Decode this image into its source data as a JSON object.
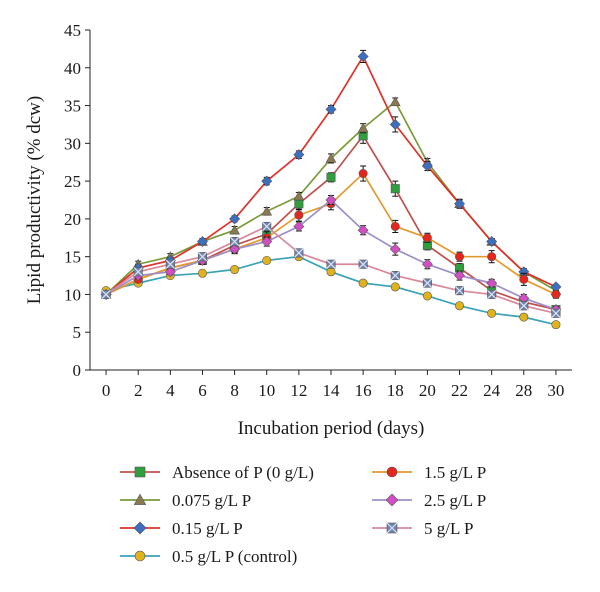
{
  "chart_data": {
    "type": "line",
    "xlabel": "Incubation period (days)",
    "ylabel": "Lipid productivity (% dcw)",
    "ylim": [
      0,
      45
    ],
    "yticks": [
      0,
      5,
      10,
      15,
      20,
      25,
      30,
      35,
      40,
      45
    ],
    "categories": [
      "0",
      "2",
      "4",
      "6",
      "8",
      "10",
      "12",
      "14",
      "16",
      "18",
      "20",
      "22",
      "24",
      "28",
      "30"
    ],
    "grid": false,
    "legend_position": "bottom",
    "series": [
      {
        "name": "Absence of P (0 g/L)",
        "color": "#c0504d",
        "marker": "square",
        "marker_color": "#2e9e3e",
        "values": [
          10.0,
          12.0,
          13.5,
          14.5,
          16.5,
          18.0,
          22.0,
          25.5,
          31.0,
          24.0,
          16.5,
          13.5,
          10.5,
          9.0,
          8.0
        ],
        "errors": [
          0.3,
          0.4,
          0.4,
          0.5,
          0.6,
          0.7,
          0.8,
          0.6,
          1.0,
          1.0,
          0.6,
          0.6,
          0.5,
          0.4,
          0.3
        ]
      },
      {
        "name": "0.075 g/L P",
        "color": "#7b9a3a",
        "marker": "triangle",
        "marker_color": "#8a7a50",
        "values": [
          10.0,
          14.0,
          15.0,
          17.0,
          18.5,
          21.0,
          23.0,
          28.0,
          32.0,
          35.5,
          27.5,
          22.0,
          17.0,
          13.0,
          10.5
        ],
        "errors": [
          0.3,
          0.4,
          0.4,
          0.4,
          0.5,
          0.5,
          0.5,
          0.6,
          0.6,
          0.5,
          0.5,
          0.5,
          0.4,
          0.4,
          0.3
        ]
      },
      {
        "name": "0.15 g/L P",
        "color": "#e0302a",
        "marker": "diamond",
        "marker_color": "#3b6fc0",
        "values": [
          10.0,
          13.5,
          14.5,
          17.0,
          20.0,
          25.0,
          28.5,
          34.5,
          41.5,
          32.5,
          27.0,
          22.0,
          17.0,
          13.0,
          11.0
        ],
        "errors": [
          0.3,
          0.4,
          0.4,
          0.4,
          0.4,
          0.5,
          0.5,
          0.5,
          0.8,
          1.0,
          0.6,
          0.6,
          0.4,
          0.4,
          0.3
        ]
      },
      {
        "name": "0.5 g/L P (control)",
        "color": "#3aa3b8",
        "marker": "circle",
        "marker_color": "#e0b21e",
        "values": [
          10.5,
          11.5,
          12.5,
          12.8,
          13.3,
          14.5,
          15.0,
          13.0,
          11.5,
          11.0,
          9.8,
          8.5,
          7.5,
          7.0,
          6.0
        ],
        "errors": [
          0.3,
          0.3,
          0.3,
          0.3,
          0.3,
          0.3,
          0.3,
          0.3,
          0.3,
          0.3,
          0.3,
          0.3,
          0.3,
          0.3,
          0.3
        ]
      },
      {
        "name": "1.5 g/L P",
        "color": "#e39a2c",
        "marker": "circle",
        "marker_color": "#e3271e",
        "values": [
          10.0,
          12.0,
          13.5,
          14.5,
          16.0,
          17.5,
          20.5,
          22.0,
          26.0,
          19.0,
          17.5,
          15.0,
          15.0,
          12.0,
          10.0
        ],
        "errors": [
          0.3,
          0.4,
          0.4,
          0.5,
          0.6,
          0.8,
          0.8,
          0.8,
          1.0,
          0.8,
          0.6,
          0.6,
          0.8,
          0.8,
          0.5
        ]
      },
      {
        "name": "2.5 g/L P",
        "color": "#9d8ec7",
        "marker": "diamond",
        "marker_color": "#d14fc2",
        "values": [
          10.0,
          12.5,
          13.0,
          14.5,
          16.0,
          17.0,
          19.0,
          22.5,
          18.5,
          16.0,
          14.0,
          12.5,
          11.5,
          9.5,
          8.0
        ],
        "errors": [
          0.3,
          0.4,
          0.4,
          0.5,
          0.5,
          0.6,
          0.6,
          0.6,
          0.6,
          0.8,
          0.6,
          0.6,
          0.5,
          0.5,
          0.4
        ]
      },
      {
        "name": "5 g/L P",
        "color": "#d9889a",
        "marker": "xsquare",
        "marker_color": "#6f83ae",
        "values": [
          10.0,
          13.0,
          14.0,
          15.0,
          17.0,
          19.0,
          15.5,
          14.0,
          14.0,
          12.5,
          11.5,
          10.5,
          10.0,
          8.5,
          7.5
        ],
        "errors": [
          0.3,
          0.4,
          0.4,
          0.4,
          0.5,
          0.5,
          0.5,
          0.5,
          0.5,
          0.5,
          0.5,
          0.5,
          0.5,
          0.5,
          0.4
        ]
      }
    ]
  }
}
